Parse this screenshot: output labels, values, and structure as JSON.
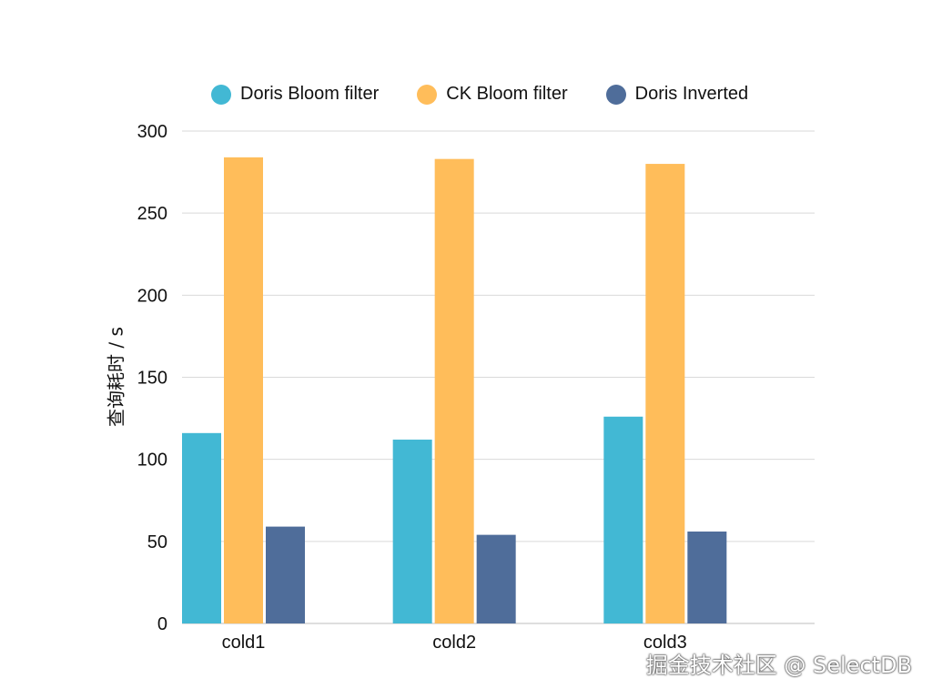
{
  "chart_data": {
    "type": "bar",
    "categories": [
      "cold1",
      "cold2",
      "cold3"
    ],
    "series": [
      {
        "name": "Doris Bloom filter",
        "color": "#42b8d4",
        "values": [
          116,
          112,
          126
        ]
      },
      {
        "name": "CK Bloom filter",
        "color": "#ffbd5a",
        "values": [
          284,
          283,
          280
        ]
      },
      {
        "name": "Doris Inverted",
        "color": "#4f6d9a",
        "values": [
          59,
          54,
          56
        ]
      }
    ],
    "ylabel": "查询耗时 / s",
    "ylim": [
      0,
      300
    ],
    "yticks": [
      0,
      50,
      100,
      150,
      200,
      250,
      300
    ],
    "grid": true,
    "legend_position": "top"
  },
  "watermark": "掘金技术社区 @ SelectDB"
}
